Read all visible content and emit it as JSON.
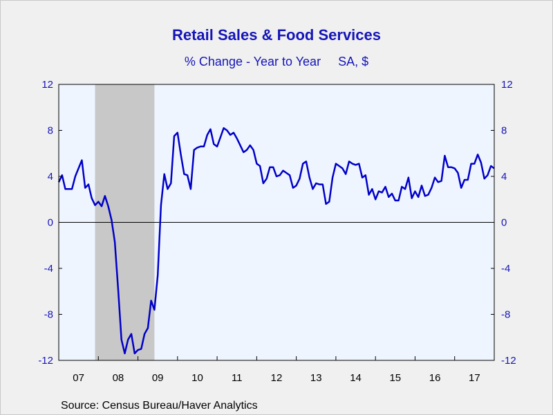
{
  "title": "Retail Sales & Food Services",
  "subtitle": "% Change - Year to Year     SA, $",
  "source": "Source:  Census Bureau/Haver Analytics",
  "colors": {
    "line": "#0000c8",
    "axis_text": "#1515b8",
    "plot_bg": "#eef5ff",
    "recession": "#c8c8c8",
    "zero_line": "#000000"
  },
  "chart_data": {
    "type": "line",
    "title": "Retail Sales & Food Services",
    "subtitle": "% Change - Year to Year     SA, $",
    "xlabel": "",
    "ylabel": "",
    "ylim": [
      -12,
      12
    ],
    "xlim": [
      2007.0,
      2018.0
    ],
    "y_ticks": [
      -12,
      -8,
      -4,
      0,
      4,
      8,
      12
    ],
    "y_tick_labels": [
      "-12",
      "-8",
      "-4",
      "0",
      "4",
      "8",
      "12"
    ],
    "x_tick_labels": [
      "07",
      "08",
      "09",
      "10",
      "11",
      "12",
      "13",
      "14",
      "15",
      "16",
      "17"
    ],
    "dual_y_axis": true,
    "grid": false,
    "zero_line": true,
    "recession_shading": [
      [
        2007.917,
        2009.417
      ]
    ],
    "series": [
      {
        "start": 2007.0,
        "step": 0.08333,
        "values": [
          3.5,
          4.1,
          2.9,
          2.9,
          2.9,
          4.0,
          4.7,
          5.4,
          3.0,
          3.3,
          2.1,
          1.5,
          1.8,
          1.4,
          2.3,
          1.4,
          0.2,
          -1.7,
          -5.8,
          -10.2,
          -11.4,
          -10.2,
          -9.7,
          -11.4,
          -11.1,
          -11.0,
          -9.7,
          -9.2,
          -6.8,
          -7.6,
          -4.6,
          1.5,
          4.2,
          2.9,
          3.4,
          7.5,
          7.8,
          5.9,
          4.2,
          4.1,
          2.9,
          6.3,
          6.5,
          6.6,
          6.6,
          7.6,
          8.1,
          6.8,
          6.6,
          7.4,
          8.2,
          8.0,
          7.6,
          7.8,
          7.3,
          6.7,
          6.1,
          6.3,
          6.7,
          6.3,
          5.1,
          4.9,
          3.4,
          3.8,
          4.8,
          4.8,
          4.0,
          4.1,
          4.5,
          4.3,
          4.1,
          3.0,
          3.2,
          3.8,
          5.1,
          5.3,
          3.9,
          2.9,
          3.4,
          3.3,
          3.3,
          1.6,
          1.8,
          3.9,
          5.1,
          4.9,
          4.7,
          4.2,
          5.3,
          5.1,
          5.0,
          5.1,
          3.9,
          4.1,
          2.4,
          2.9,
          2.0,
          2.7,
          2.6,
          3.1,
          2.2,
          2.5,
          1.9,
          1.9,
          3.1,
          2.9,
          3.9,
          2.1,
          2.7,
          2.2,
          3.2,
          2.3,
          2.4,
          3.0,
          3.9,
          3.5,
          3.6,
          5.8,
          4.8,
          4.8,
          4.7,
          4.3,
          3.0,
          3.7,
          3.7,
          5.1,
          5.1,
          5.9,
          5.2,
          3.8,
          4.1,
          4.9,
          4.7
        ]
      }
    ]
  }
}
